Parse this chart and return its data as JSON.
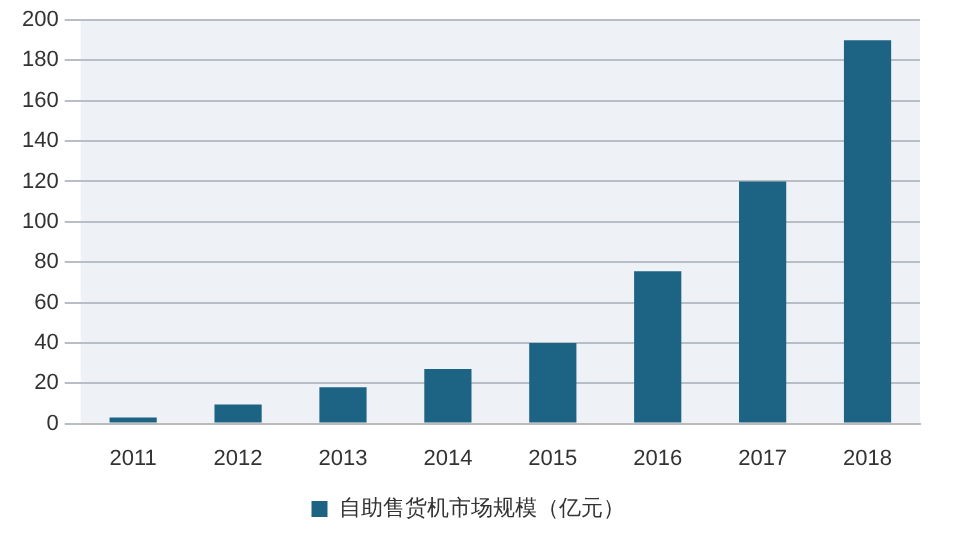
{
  "chart_data": {
    "type": "bar",
    "categories": [
      "2011",
      "2012",
      "2013",
      "2014",
      "2015",
      "2016",
      "2017",
      "2018"
    ],
    "series": [
      {
        "name": "自助售货机市场规模（亿元）",
        "color": "#1d6383",
        "values": [
          3,
          9.5,
          18,
          27,
          40,
          75.5,
          120,
          190
        ]
      }
    ],
    "ylim": [
      0,
      200
    ],
    "yticks": [
      0,
      20,
      40,
      60,
      80,
      100,
      120,
      140,
      160,
      180,
      200
    ],
    "grid": "y",
    "legend": "bottom"
  }
}
